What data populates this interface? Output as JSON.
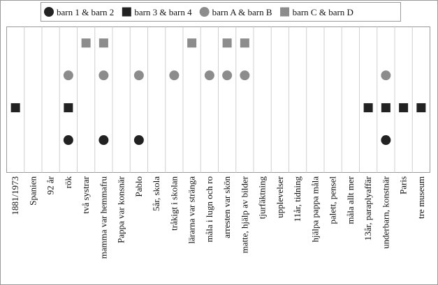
{
  "chart_data": {
    "type": "scatter",
    "categories": [
      "1881/1973",
      "Spanien",
      "92 år",
      "rök",
      "två systrar",
      "mamma var hemmafru",
      "Pappa var konsnär",
      "Pablo",
      "5år, skola",
      "tråkigt i skolan",
      "lärarna var stränga",
      "måla i lugn och ro",
      "arresten var skön",
      "matte, hjälp av bilder",
      "tjurfäktning",
      "upplevelser",
      "11år, tidning",
      "hjälpa pappa måla",
      "palett, pensel",
      "måla allt mer",
      "13år, paraplyaffär",
      "underbarn, konstnär",
      "Paris",
      "tre museum"
    ],
    "series": [
      {
        "name": "barn 1 & barn 2",
        "color": "#222222",
        "marker": "circle",
        "values": [
          null,
          null,
          null,
          1,
          null,
          1,
          null,
          1,
          null,
          null,
          null,
          null,
          null,
          null,
          null,
          null,
          null,
          null,
          null,
          null,
          null,
          1,
          null,
          null
        ]
      },
      {
        "name": "barn 3 & barn 4",
        "color": "#222222",
        "marker": "square",
        "values": [
          2,
          null,
          null,
          2,
          null,
          null,
          null,
          null,
          null,
          null,
          null,
          null,
          null,
          null,
          null,
          null,
          null,
          null,
          null,
          null,
          2,
          2,
          2,
          2
        ]
      },
      {
        "name": "barn A & barn B",
        "color": "#8c8c8c",
        "marker": "circle",
        "values": [
          null,
          null,
          null,
          3,
          null,
          3,
          null,
          3,
          null,
          3,
          null,
          3,
          3,
          3,
          null,
          null,
          null,
          null,
          null,
          null,
          null,
          3,
          null,
          null
        ]
      },
      {
        "name": "barn C & barn D",
        "color": "#8c8c8c",
        "marker": "square",
        "values": [
          null,
          null,
          null,
          null,
          4,
          4,
          null,
          null,
          null,
          null,
          4,
          null,
          4,
          4,
          null,
          null,
          null,
          null,
          null,
          null,
          null,
          null,
          null,
          null
        ]
      }
    ],
    "ylim": [
      0,
      4.5
    ],
    "legend": "top",
    "grid": true
  }
}
